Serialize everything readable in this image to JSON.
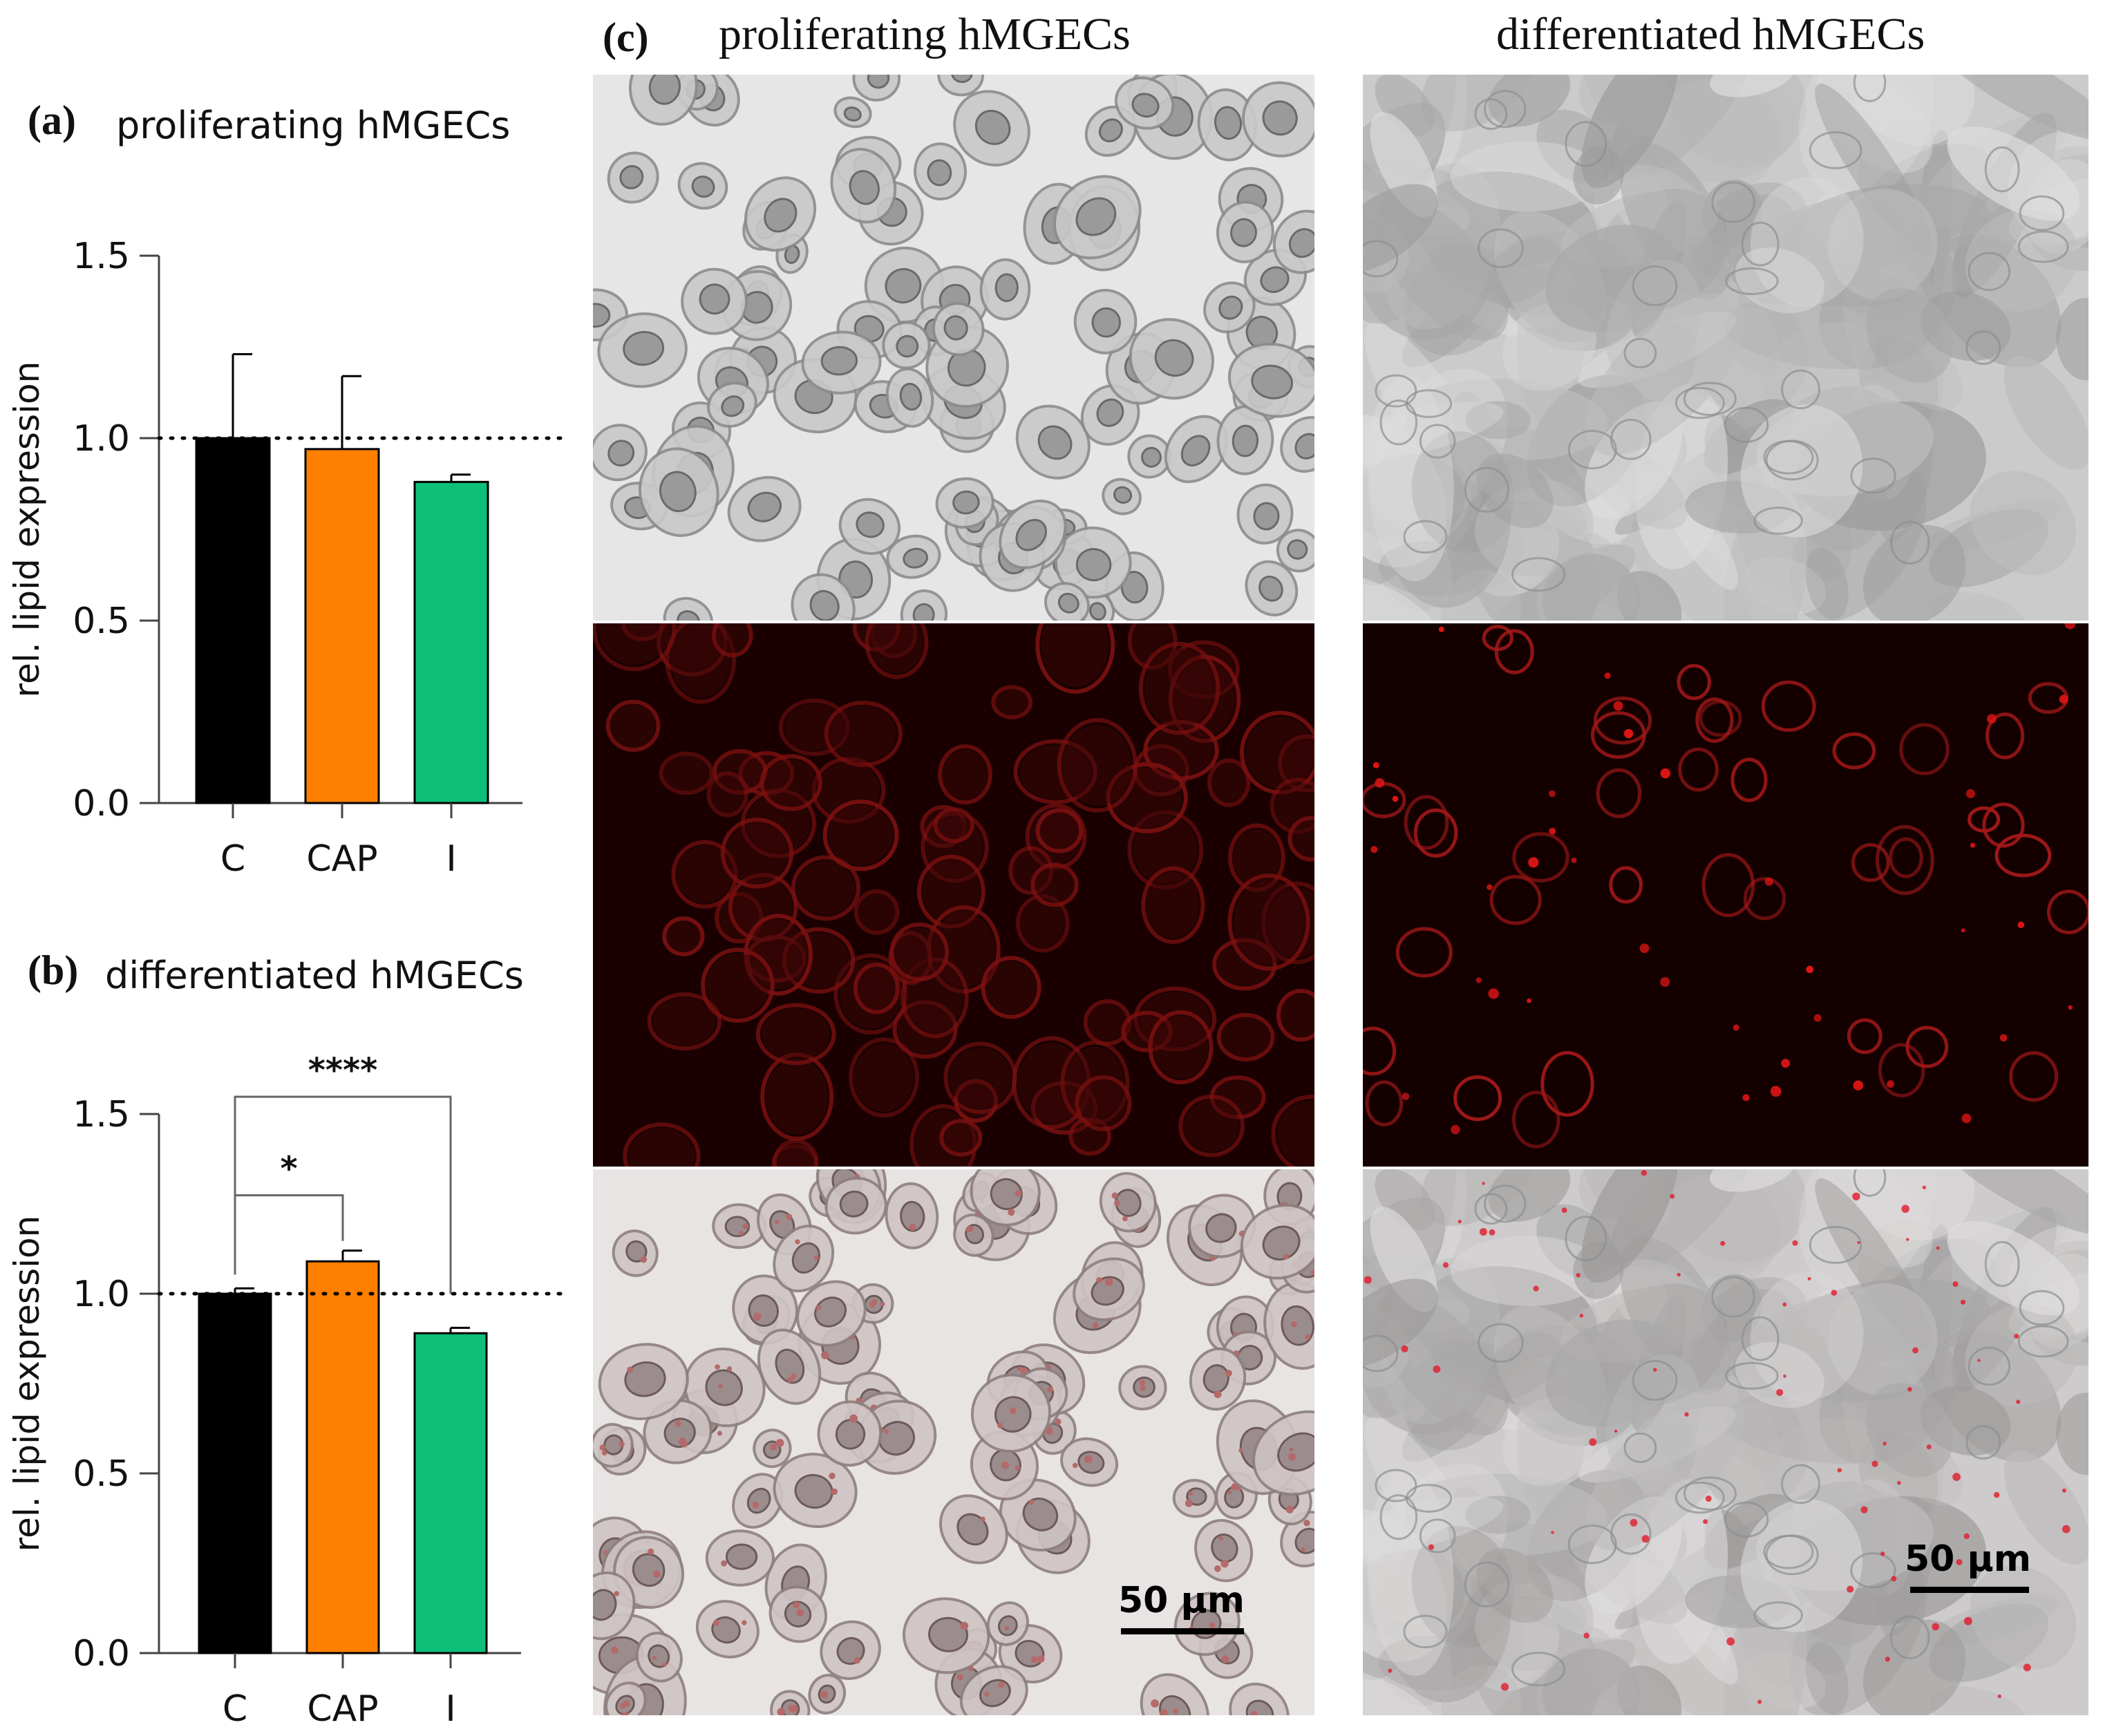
{
  "panels": {
    "a": {
      "letter": "(a)",
      "title": "proliferating hMGECs"
    },
    "b": {
      "letter": "(b)",
      "title": "differentiated hMGECs"
    },
    "c": {
      "letter": "(c)",
      "columns": [
        "proliferating hMGECs",
        "differentiated hMGECs"
      ],
      "scale_bar": "50 µm"
    }
  },
  "colors": {
    "C": "#000000",
    "CAP": "#ff7f00",
    "I": "#0dbf78",
    "red_channel": "#8b0000"
  },
  "chart_data": [
    {
      "type": "bar",
      "title": "proliferating hMGECs",
      "categories": [
        "C",
        "CAP",
        "I"
      ],
      "values": [
        1.0,
        0.97,
        0.88
      ],
      "errors": [
        0.23,
        0.2,
        0.02
      ],
      "ylabel": "rel. lipid expression",
      "xlabel": "",
      "ylim": [
        0.0,
        1.5
      ],
      "yticks": [
        "0.0",
        "0.5",
        "1.0",
        "1.5"
      ],
      "reference_line": 1.0,
      "grid": false,
      "significance": []
    },
    {
      "type": "bar",
      "title": "differentiated hMGECs",
      "categories": [
        "C",
        "CAP",
        "I"
      ],
      "values": [
        1.0,
        1.09,
        0.89
      ],
      "errors": [
        0.015,
        0.03,
        0.015
      ],
      "ylabel": "rel. lipid expression",
      "xlabel": "",
      "ylim": [
        0.0,
        1.5
      ],
      "yticks": [
        "0.0",
        "0.5",
        "1.0",
        "1.5"
      ],
      "reference_line": 1.0,
      "grid": false,
      "significance": [
        {
          "from": "C",
          "to": "CAP",
          "label": "*"
        },
        {
          "from": "C",
          "to": "I",
          "label": "****"
        }
      ]
    }
  ]
}
